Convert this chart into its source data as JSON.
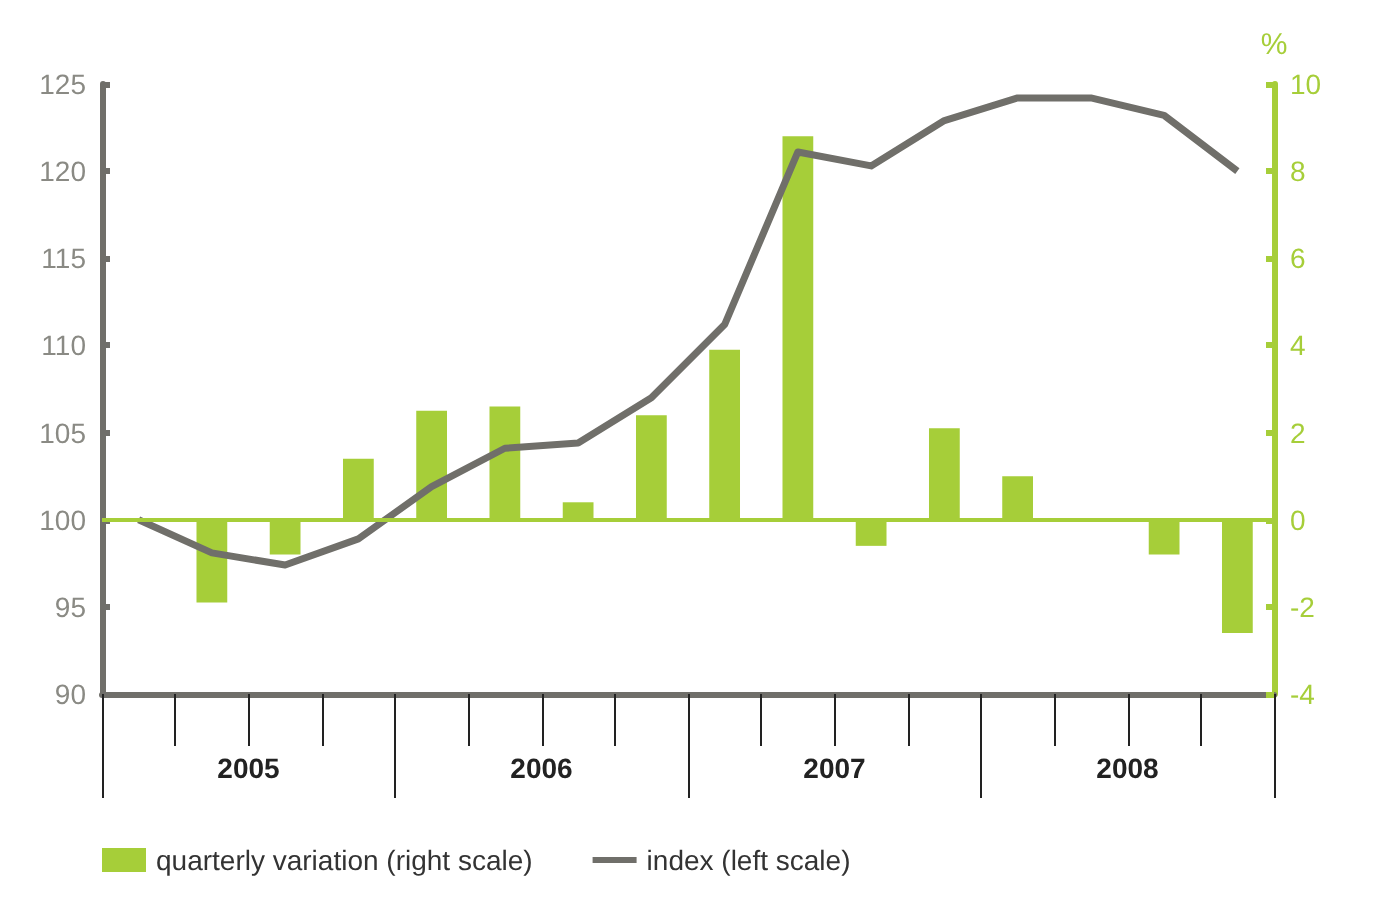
{
  "chart_data": {
    "type": "bar",
    "categories": [
      null,
      null,
      null,
      null,
      null,
      null,
      null,
      null,
      null,
      null,
      null,
      null,
      null,
      null,
      null,
      null
    ],
    "annotations": [
      "2005",
      "2006",
      "2007",
      "2008"
    ],
    "series": [
      {
        "name": "quarterly variation (right scale)",
        "axis": "y2",
        "color": "#a6ce39",
        "values": [
          null,
          -1.9,
          -0.8,
          1.4,
          2.5,
          2.6,
          0.4,
          2.4,
          3.9,
          8.8,
          -0.6,
          2.1,
          1.0,
          0,
          -0.8,
          -2.6
        ]
      },
      {
        "name": "index (left scale)",
        "type": "line",
        "color": "#706f6a",
        "values": [
          100,
          98.1,
          97.4,
          98.9,
          101.9,
          104.1,
          104.4,
          107.0,
          111.2,
          121.1,
          120.3,
          122.9,
          124.2,
          124.2,
          123.2,
          120
        ]
      }
    ],
    "ylim": [
      90,
      125
    ],
    "yticks": [
      90,
      95,
      100,
      105,
      110,
      115,
      120,
      125
    ],
    "y2label": "%",
    "y2lim": [
      -4,
      10
    ],
    "y2ticks": [
      -4,
      -2,
      0,
      2,
      4,
      6,
      8,
      10
    ],
    "ref_lines": [
      {
        "axis": "y2",
        "value": 0,
        "color": "#a6ce39"
      }
    ],
    "grid": false,
    "legend": "bottom left",
    "marker": "none",
    "line_style": "solid"
  }
}
